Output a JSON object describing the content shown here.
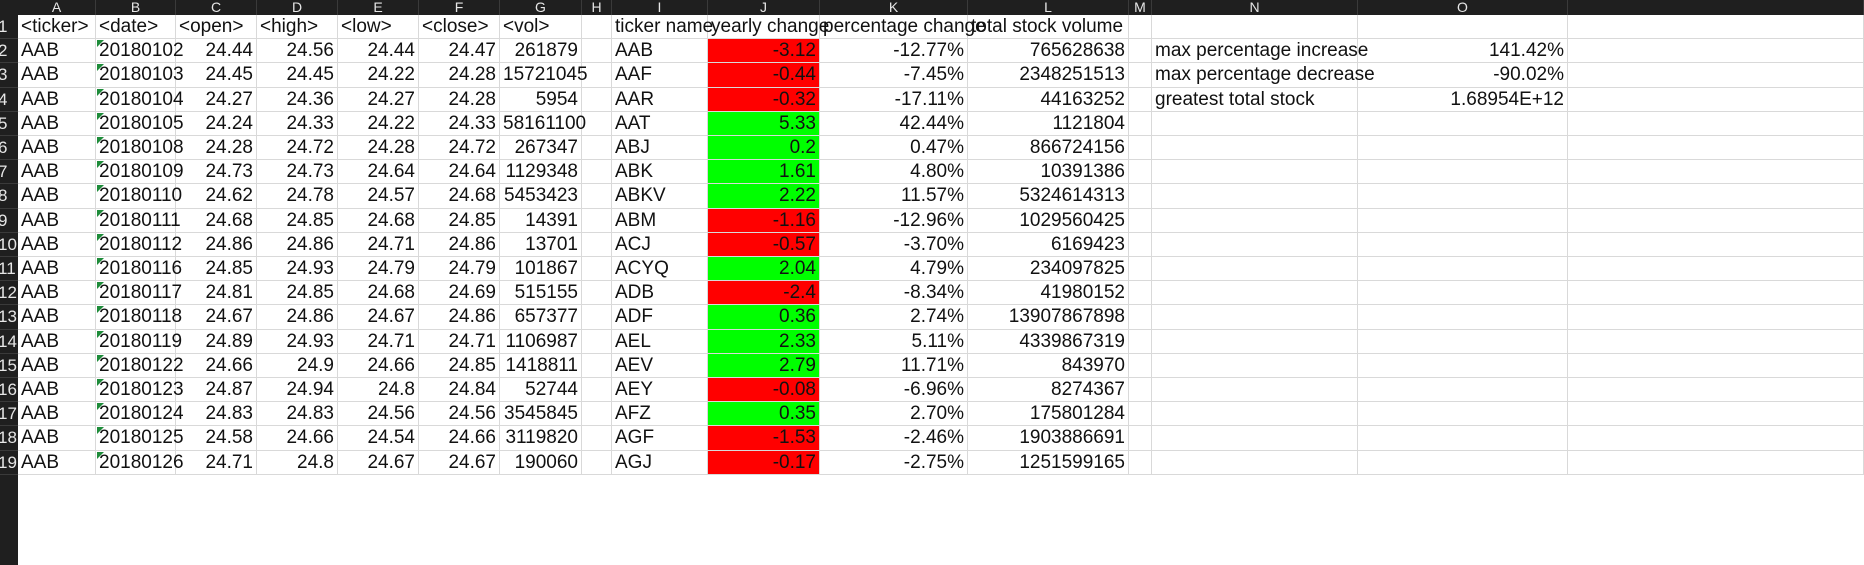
{
  "column_letters": [
    "A",
    "B",
    "C",
    "D",
    "E",
    "F",
    "G",
    "H",
    "I",
    "J",
    "K",
    "L",
    "M",
    "N",
    "O"
  ],
  "row_numbers": [
    "1",
    "2",
    "3",
    "4",
    "5",
    "6",
    "7",
    "8",
    "9",
    "10",
    "11",
    "12",
    "13",
    "14",
    "15",
    "16",
    "17",
    "18",
    "19"
  ],
  "headers": {
    "ticker": "<ticker>",
    "date": "<date>",
    "open": "<open>",
    "high": "<high>",
    "low": "<low>",
    "close": "<close>",
    "vol": "<vol>",
    "ticker_name": "ticker name",
    "yearly_change": "yearly change",
    "percentage_change": "percentage change",
    "total_stock_volume": "total stock volume"
  },
  "data_rows": [
    {
      "ticker": "AAB",
      "date": "20180102",
      "open": "24.44",
      "high": "24.56",
      "low": "24.44",
      "close": "24.47",
      "vol": "261879"
    },
    {
      "ticker": "AAB",
      "date": "20180103",
      "open": "24.45",
      "high": "24.45",
      "low": "24.22",
      "close": "24.28",
      "vol": "15721045"
    },
    {
      "ticker": "AAB",
      "date": "20180104",
      "open": "24.27",
      "high": "24.36",
      "low": "24.27",
      "close": "24.28",
      "vol": "5954"
    },
    {
      "ticker": "AAB",
      "date": "20180105",
      "open": "24.24",
      "high": "24.33",
      "low": "24.22",
      "close": "24.33",
      "vol": "58161100"
    },
    {
      "ticker": "AAB",
      "date": "20180108",
      "open": "24.28",
      "high": "24.72",
      "low": "24.28",
      "close": "24.72",
      "vol": "267347"
    },
    {
      "ticker": "AAB",
      "date": "20180109",
      "open": "24.73",
      "high": "24.73",
      "low": "24.64",
      "close": "24.64",
      "vol": "1129348"
    },
    {
      "ticker": "AAB",
      "date": "20180110",
      "open": "24.62",
      "high": "24.78",
      "low": "24.57",
      "close": "24.68",
      "vol": "5453423"
    },
    {
      "ticker": "AAB",
      "date": "20180111",
      "open": "24.68",
      "high": "24.85",
      "low": "24.68",
      "close": "24.85",
      "vol": "14391"
    },
    {
      "ticker": "AAB",
      "date": "20180112",
      "open": "24.86",
      "high": "24.86",
      "low": "24.71",
      "close": "24.86",
      "vol": "13701"
    },
    {
      "ticker": "AAB",
      "date": "20180116",
      "open": "24.85",
      "high": "24.93",
      "low": "24.79",
      "close": "24.79",
      "vol": "101867"
    },
    {
      "ticker": "AAB",
      "date": "20180117",
      "open": "24.81",
      "high": "24.85",
      "low": "24.68",
      "close": "24.69",
      "vol": "515155"
    },
    {
      "ticker": "AAB",
      "date": "20180118",
      "open": "24.67",
      "high": "24.86",
      "low": "24.67",
      "close": "24.86",
      "vol": "657377"
    },
    {
      "ticker": "AAB",
      "date": "20180119",
      "open": "24.89",
      "high": "24.93",
      "low": "24.71",
      "close": "24.71",
      "vol": "1106987"
    },
    {
      "ticker": "AAB",
      "date": "20180122",
      "open": "24.66",
      "high": "24.9",
      "low": "24.66",
      "close": "24.85",
      "vol": "1418811"
    },
    {
      "ticker": "AAB",
      "date": "20180123",
      "open": "24.87",
      "high": "24.94",
      "low": "24.8",
      "close": "24.84",
      "vol": "52744"
    },
    {
      "ticker": "AAB",
      "date": "20180124",
      "open": "24.83",
      "high": "24.83",
      "low": "24.56",
      "close": "24.56",
      "vol": "3545845"
    },
    {
      "ticker": "AAB",
      "date": "20180125",
      "open": "24.58",
      "high": "24.66",
      "low": "24.54",
      "close": "24.66",
      "vol": "3119820"
    },
    {
      "ticker": "AAB",
      "date": "20180126",
      "open": "24.71",
      "high": "24.8",
      "low": "24.67",
      "close": "24.67",
      "vol": "190060"
    }
  ],
  "summary_rows": [
    {
      "ticker_name": "AAB",
      "yearly_change": "-3.12",
      "percentage_change": "-12.77%",
      "total_stock_volume": "765628638",
      "color": "#ff0000"
    },
    {
      "ticker_name": "AAF",
      "yearly_change": "-0.44",
      "percentage_change": "-7.45%",
      "total_stock_volume": "2348251513",
      "color": "#ff0000"
    },
    {
      "ticker_name": "AAR",
      "yearly_change": "-0.32",
      "percentage_change": "-17.11%",
      "total_stock_volume": "44163252",
      "color": "#ff0000"
    },
    {
      "ticker_name": "AAT",
      "yearly_change": "5.33",
      "percentage_change": "42.44%",
      "total_stock_volume": "1121804",
      "color": "#00ff00"
    },
    {
      "ticker_name": "ABJ",
      "yearly_change": "0.2",
      "percentage_change": "0.47%",
      "total_stock_volume": "866724156",
      "color": "#00ff00"
    },
    {
      "ticker_name": "ABK",
      "yearly_change": "1.61",
      "percentage_change": "4.80%",
      "total_stock_volume": "10391386",
      "color": "#00ff00"
    },
    {
      "ticker_name": "ABKV",
      "yearly_change": "2.22",
      "percentage_change": "11.57%",
      "total_stock_volume": "5324614313",
      "color": "#00ff00"
    },
    {
      "ticker_name": "ABM",
      "yearly_change": "-1.16",
      "percentage_change": "-12.96%",
      "total_stock_volume": "1029560425",
      "color": "#ff0000"
    },
    {
      "ticker_name": "ACJ",
      "yearly_change": "-0.57",
      "percentage_change": "-3.70%",
      "total_stock_volume": "6169423",
      "color": "#ff0000"
    },
    {
      "ticker_name": "ACYQ",
      "yearly_change": "2.04",
      "percentage_change": "4.79%",
      "total_stock_volume": "234097825",
      "color": "#00ff00"
    },
    {
      "ticker_name": "ADB",
      "yearly_change": "-2.4",
      "percentage_change": "-8.34%",
      "total_stock_volume": "41980152",
      "color": "#ff0000"
    },
    {
      "ticker_name": "ADF",
      "yearly_change": "0.36",
      "percentage_change": "2.74%",
      "total_stock_volume": "13907867898",
      "color": "#00ff00"
    },
    {
      "ticker_name": "AEL",
      "yearly_change": "2.33",
      "percentage_change": "5.11%",
      "total_stock_volume": "4339867319",
      "color": "#00ff00"
    },
    {
      "ticker_name": "AEV",
      "yearly_change": "2.79",
      "percentage_change": "11.71%",
      "total_stock_volume": "843970",
      "color": "#00ff00"
    },
    {
      "ticker_name": "AEY",
      "yearly_change": "-0.08",
      "percentage_change": "-6.96%",
      "total_stock_volume": "8274367",
      "color": "#ff0000"
    },
    {
      "ticker_name": "AFZ",
      "yearly_change": "0.35",
      "percentage_change": "2.70%",
      "total_stock_volume": "175801284",
      "color": "#00ff00"
    },
    {
      "ticker_name": "AGF",
      "yearly_change": "-1.53",
      "percentage_change": "-2.46%",
      "total_stock_volume": "1903886691",
      "color": "#ff0000"
    },
    {
      "ticker_name": "AGJ",
      "yearly_change": "-0.17",
      "percentage_change": "-2.75%",
      "total_stock_volume": "1251599165",
      "color": "#ff0000"
    }
  ],
  "stats": [
    {
      "label": "max percentage increase",
      "value": "141.42%"
    },
    {
      "label": "max percentage decrease",
      "value": "-90.02%"
    },
    {
      "label": "greatest total stock",
      "value": "1.68954E+12"
    }
  ]
}
